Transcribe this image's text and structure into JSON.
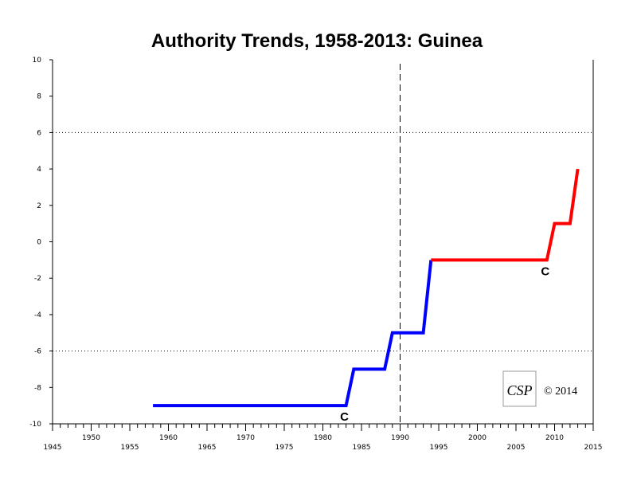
{
  "chart_data": {
    "type": "line",
    "title": "Authority Trends, 1958-2013: Guinea",
    "xlabel": "",
    "ylabel": "",
    "xlim": [
      1945,
      2015
    ],
    "ylim": [
      -10,
      10
    ],
    "x_major_ticks": [
      1945,
      1950,
      1955,
      1960,
      1965,
      1970,
      1975,
      1980,
      1985,
      1990,
      1995,
      2000,
      2005,
      2010,
      2015
    ],
    "x_tick_labels": [
      "1945",
      "1950",
      "1955",
      "1960",
      "1965",
      "1970",
      "1975",
      "1980",
      "1985",
      "1990",
      "1995",
      "2000",
      "2005",
      "2010",
      "2015"
    ],
    "y_ticks": [
      -10,
      -8,
      -6,
      -4,
      -2,
      0,
      2,
      4,
      6,
      8,
      10
    ],
    "y_tick_labels": [
      "-10",
      "-8",
      "-6",
      "-4",
      "-2",
      "0",
      "2",
      "4",
      "6",
      "8",
      "10"
    ],
    "reference_lines_y": [
      6,
      -6
    ],
    "reference_line_x": 1990,
    "series": [
      {
        "color": "#0000ff",
        "points": [
          [
            1958,
            -9
          ],
          [
            1983,
            -9
          ],
          [
            1984,
            -7
          ],
          [
            1988,
            -7
          ],
          [
            1989,
            -5
          ],
          [
            1993,
            -5
          ],
          [
            1994,
            -1
          ]
        ]
      },
      {
        "color": "#ff0000",
        "points": [
          [
            1994,
            -1
          ],
          [
            2009,
            -1
          ],
          [
            2010,
            1
          ],
          [
            2012,
            1
          ],
          [
            2013,
            4
          ]
        ]
      }
    ],
    "annotations": [
      {
        "text": "C",
        "x": 1983,
        "y": -9
      },
      {
        "text": "C",
        "x": 2009,
        "y": -1
      }
    ]
  },
  "copyright": "© 2014",
  "logo_text": "CSP"
}
